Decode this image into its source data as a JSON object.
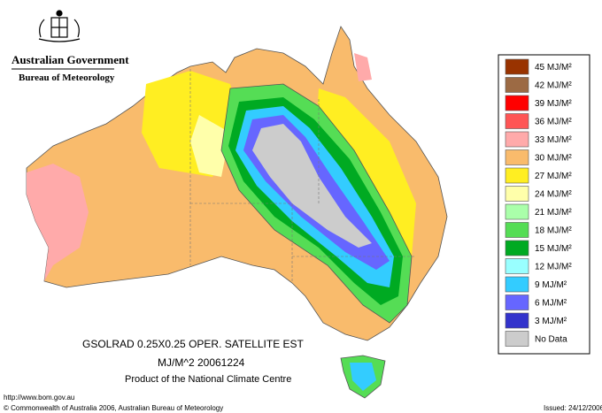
{
  "header": {
    "government": "Australian Government",
    "agency": "Bureau of Meteorology"
  },
  "caption": {
    "line1": "GSOLRAD    0.25X0.25 OPER. SATELLITE EST",
    "line2": "MJ/M^2  20061224",
    "line3": "Product of the National Climate Centre"
  },
  "footer": {
    "url": "http://www.bom.gov.au",
    "copyright": "© Commonwealth of Australia 2006, Australian Bureau of Meteorology",
    "issued": "Issued: 24/12/2006"
  },
  "legend": [
    {
      "label": "45 MJ/M²",
      "color": "#993300"
    },
    {
      "label": "42 MJ/M²",
      "color": "#9c6a44"
    },
    {
      "label": "39 MJ/M²",
      "color": "#ff0000"
    },
    {
      "label": "36 MJ/M²",
      "color": "#ff5555"
    },
    {
      "label": "33 MJ/M²",
      "color": "#ffaaaa"
    },
    {
      "label": "30 MJ/M²",
      "color": "#f9bb6c"
    },
    {
      "label": "27 MJ/M²",
      "color": "#ffee22"
    },
    {
      "label": "24 MJ/M²",
      "color": "#ffffaa"
    },
    {
      "label": "21 MJ/M²",
      "color": "#aaffaa"
    },
    {
      "label": "18 MJ/M²",
      "color": "#55dd55"
    },
    {
      "label": "15 MJ/M²",
      "color": "#00aa22"
    },
    {
      "label": "12 MJ/M²",
      "color": "#99ffff"
    },
    {
      "label": "9 MJ/M²",
      "color": "#33ccff"
    },
    {
      "label": "6 MJ/M²",
      "color": "#6666ff"
    },
    {
      "label": "3 MJ/M²",
      "color": "#3333cc"
    },
    {
      "label": "No Data",
      "color": "#cccccc"
    }
  ]
}
